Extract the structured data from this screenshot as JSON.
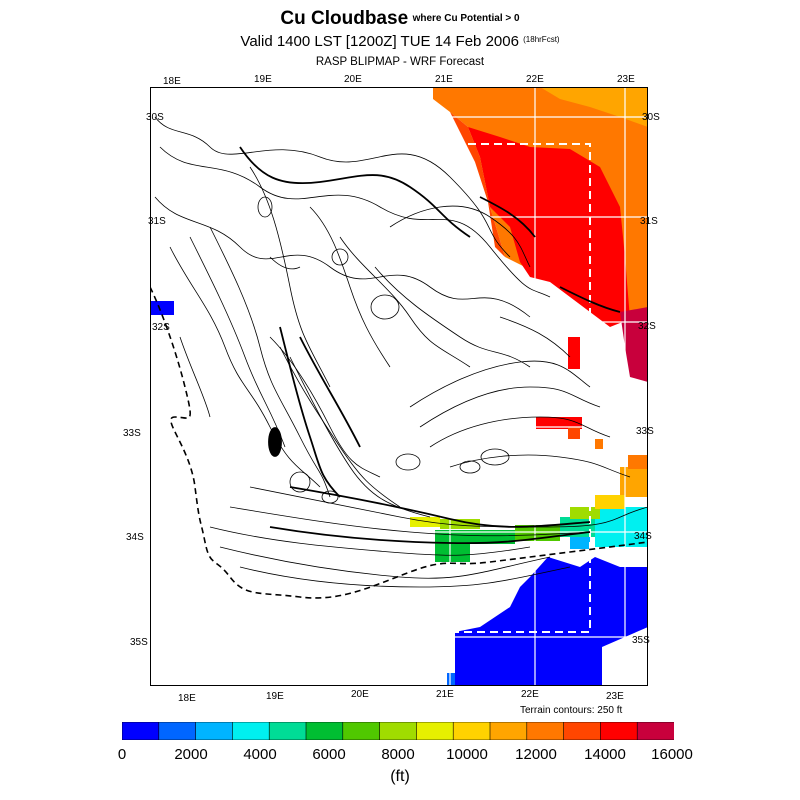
{
  "titles": {
    "main": "Cu Cloudbase",
    "main_suffix": "where Cu Potential > 0",
    "subtitle": "Valid 1400 LST [1200Z] TUE 14 Feb 2006",
    "subtitle_suffix": "(18hrFcst)",
    "third": "RASP BLIPMAP - WRF Forecast"
  },
  "map": {
    "lon_labels_top": [
      "18E",
      "19E",
      "20E",
      "21E",
      "22E",
      "23E"
    ],
    "lon_labels_bottom": [
      "18E",
      "19E",
      "20E",
      "21E",
      "22E",
      "23E"
    ],
    "lat_labels_left": [
      "30S",
      "31S",
      "32S",
      "33S",
      "34S",
      "35S"
    ],
    "lat_labels_right": [
      "30S",
      "31S",
      "32S",
      "33S",
      "34S",
      "35S"
    ],
    "terrain_note": "Terrain contours: 250 ft"
  },
  "colorbar": {
    "unit": "(ft)",
    "tick_labels": [
      "0",
      "2000",
      "4000",
      "6000",
      "8000",
      "10000",
      "12000",
      "14000",
      "16000"
    ],
    "colors": [
      "#0000ff",
      "#0066ff",
      "#00b4ff",
      "#00f0f0",
      "#00dc96",
      "#00be32",
      "#50c800",
      "#a0dc00",
      "#e6f000",
      "#ffd200",
      "#ffa500",
      "#ff7800",
      "#ff4600",
      "#ff0000",
      "#c8003c"
    ]
  }
}
